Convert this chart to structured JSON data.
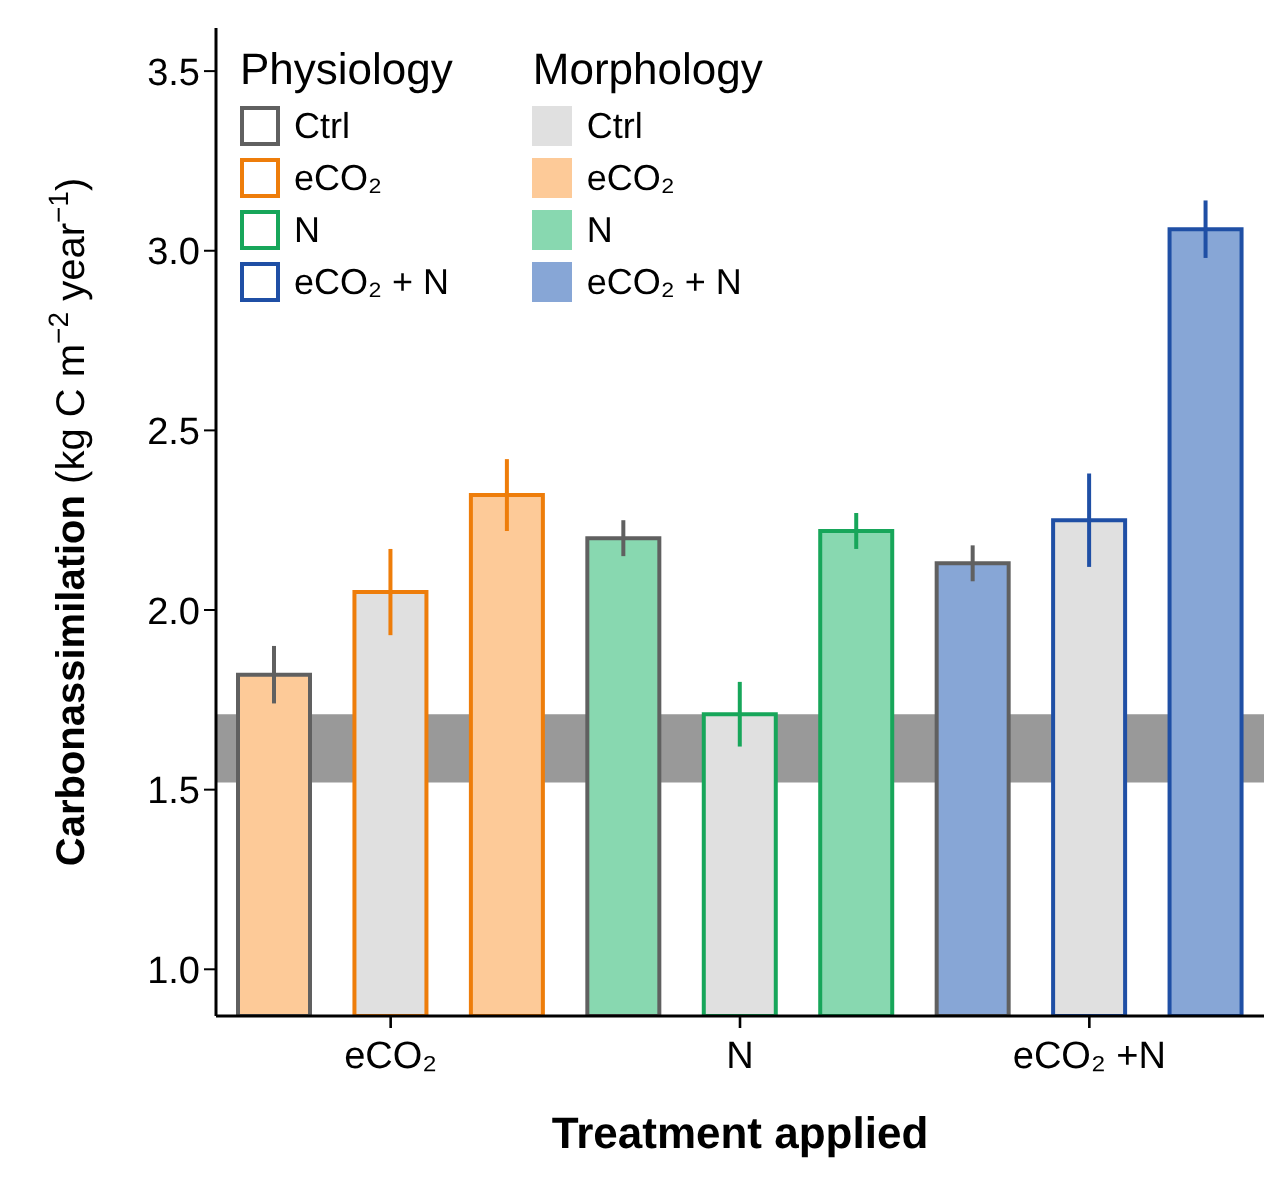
{
  "chart_data": {
    "type": "bar",
    "xlabel": "Treatment applied",
    "ylabel": "Carbonassimilation (kg C m$^{−2}$ year$^{−1}$)",
    "categories": [
      null,
      "eCO₂",
      null,
      null,
      "N",
      null,
      null,
      "eCO₂ +N",
      null
    ],
    "series": [
      {
        "name": "Ctrl",
        "color": "#606060",
        "values": [
          1.82,
          null,
          null,
          2.2,
          null,
          null,
          2.13,
          null,
          null
        ],
        "errors": [
          0.08,
          null,
          null,
          0.05,
          null,
          null,
          0.05,
          null,
          null
        ],
        "colors": [
          "#fdca98",
          null,
          null,
          "#88d8b0",
          null,
          null,
          "#87a6d6",
          null,
          null
        ]
      },
      {
        "name": "eCO₂",
        "color": "#ee7d0a",
        "values": [
          null,
          2.05,
          2.32,
          null,
          null,
          null,
          null,
          null,
          null
        ],
        "errors": [
          null,
          0.12,
          0.1,
          null,
          null,
          null,
          null,
          null,
          null
        ],
        "colors": [
          null,
          "#e0e0e0",
          "#fdca98",
          null,
          null,
          null,
          null,
          null,
          null
        ]
      },
      {
        "name": "N",
        "color": "#17a65a",
        "values": [
          null,
          null,
          null,
          null,
          1.71,
          2.22,
          null,
          null,
          null
        ],
        "errors": [
          null,
          null,
          null,
          null,
          0.09,
          0.05,
          null,
          null,
          null
        ],
        "colors": [
          null,
          null,
          null,
          null,
          "#e0e0e0",
          "#88d8b0",
          null,
          null,
          null
        ]
      },
      {
        "name": "eCO₂ + N",
        "color": "#1f4fa5",
        "values": [
          null,
          null,
          null,
          null,
          null,
          null,
          null,
          2.25,
          3.06
        ],
        "errors": [
          null,
          null,
          null,
          null,
          null,
          null,
          null,
          0.13,
          0.08
        ],
        "colors": [
          null,
          null,
          null,
          null,
          null,
          null,
          null,
          "#e0e0e0",
          "#87a6d6"
        ]
      },
      {
        "name": "Ctrl",
        "color": "#e0e0e0",
        "values": [
          null,
          null,
          null,
          null,
          null,
          null,
          null,
          null,
          null
        ]
      },
      {
        "name": "eCO₂",
        "color": "#fdca98",
        "values": [
          null,
          null,
          null,
          null,
          null,
          null,
          null,
          null,
          null
        ]
      },
      {
        "name": "N",
        "color": "#88d8b0",
        "values": [
          null,
          null,
          null,
          null,
          null,
          null,
          null,
          null,
          null
        ]
      },
      {
        "name": "eCO₂ + N",
        "color": "#87a6d6",
        "values": [
          null,
          null,
          null,
          null,
          null,
          null,
          null,
          null,
          null
        ]
      }
    ],
    "bands": [
      {
        "axis": "y",
        "from": 1.52,
        "to": 1.71,
        "color": "#999999"
      }
    ],
    "ylim": [
      0.87,
      3.62
    ],
    "yticks": [
      {
        "value": 1,
        "label": "1.0"
      },
      {
        "value": 1.5,
        "label": "1.5"
      },
      {
        "value": 2,
        "label": "2.0"
      },
      {
        "value": 2.5,
        "label": "2.5"
      },
      {
        "value": 3,
        "label": "3.0"
      },
      {
        "value": 3.5,
        "label": "3.5"
      }
    ],
    "annotations": [
      "Physiology",
      "Morphology"
    ],
    "legend": "top left",
    "grid": false
  }
}
